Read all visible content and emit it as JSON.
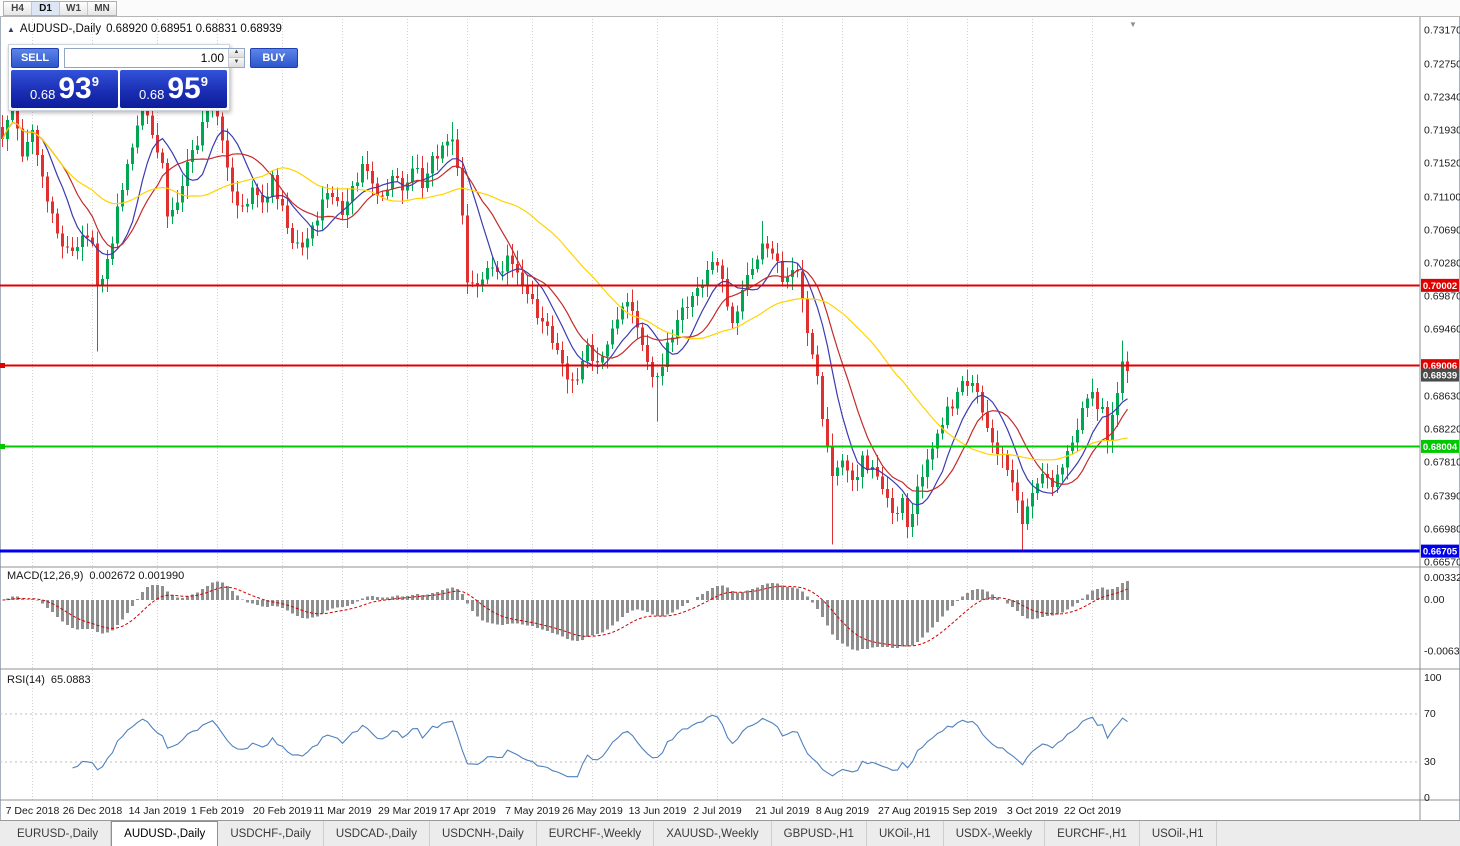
{
  "toolbar": {
    "timeframes": [
      {
        "label": "H4",
        "active": false
      },
      {
        "label": "D1",
        "active": true
      },
      {
        "label": "W1",
        "active": false
      },
      {
        "label": "MN",
        "active": false
      }
    ]
  },
  "icons": {
    "symbol_marker": "▲",
    "spinner_up": "▲",
    "spinner_down": "▼",
    "shift_marker": "▼"
  },
  "chart_header": {
    "title": "AUDUSD-,Daily",
    "ohlc": "0.68920 0.68951 0.68831 0.68939"
  },
  "trade_panel": {
    "sell_label": "SELL",
    "buy_label": "BUY",
    "volume": "1.00",
    "sell_price": {
      "prefix": "0.68",
      "big": "93",
      "sup": "9"
    },
    "buy_price": {
      "prefix": "0.68",
      "big": "95",
      "sup": "9"
    }
  },
  "macd_panel": {
    "label": "MACD(12,26,9)",
    "values": "0.002672 0.001990",
    "ticks": [
      "0.00332",
      "0.00",
      "-0.00636"
    ]
  },
  "rsi_panel": {
    "label": "RSI(14)",
    "value": "65.0883",
    "ticks": [
      "100",
      "70",
      "30",
      "0"
    ],
    "levels": [
      70,
      30
    ],
    "line_color": "#4f81bd"
  },
  "chart_data": {
    "type": "candlestick",
    "symbol": "AUDUSD",
    "timeframe": "Daily",
    "ohlc_current": {
      "open": 0.6892,
      "high": 0.68951,
      "low": 0.68831,
      "close": 0.68939
    },
    "last_close": 0.68939,
    "num_candles": 226,
    "y_axis": {
      "min": 0.6657,
      "max": 0.7317,
      "tick_step": 0.0041
    },
    "y_axis_labels": [
      "0.73170",
      "0.72750",
      "0.72340",
      "0.71930",
      "0.71520",
      "0.71100",
      "0.70690",
      "0.70280",
      "0.69870",
      "0.69460",
      "0.68630",
      "0.68220",
      "0.67810",
      "0.67390",
      "0.66980",
      "0.66570"
    ],
    "x_labels": [
      "7 Dec 2018",
      "26 Dec 2018",
      "14 Jan 2019",
      "1 Feb 2019",
      "20 Feb 2019",
      "11 Mar 2019",
      "29 Mar 2019",
      "17 Apr 2019",
      "7 May 2019",
      "26 May 2019",
      "13 Jun 2019",
      "2 Jul 2019",
      "21 Jul 2019",
      "8 Aug 2019",
      "27 Aug 2019",
      "15 Sep 2019",
      "3 Oct 2019",
      "22 Oct 2019"
    ],
    "x_label_indices": [
      6,
      18,
      31,
      43,
      56,
      68,
      81,
      93,
      106,
      118,
      131,
      143,
      156,
      168,
      181,
      193,
      206,
      218
    ],
    "close_anchors": [
      [
        0,
        0.7185
      ],
      [
        2,
        0.7215
      ],
      [
        4,
        0.716
      ],
      [
        6,
        0.7195
      ],
      [
        8,
        0.714
      ],
      [
        10,
        0.7085
      ],
      [
        12,
        0.705
      ],
      [
        14,
        0.7035
      ],
      [
        16,
        0.7062
      ],
      [
        18,
        0.7048
      ],
      [
        19,
        0.6995
      ],
      [
        20,
        0.7012
      ],
      [
        22,
        0.706
      ],
      [
        24,
        0.712
      ],
      [
        26,
        0.7178
      ],
      [
        28,
        0.7222
      ],
      [
        30,
        0.719
      ],
      [
        32,
        0.7148
      ],
      [
        33,
        0.7088
      ],
      [
        35,
        0.7112
      ],
      [
        37,
        0.715
      ],
      [
        39,
        0.7182
      ],
      [
        41,
        0.7212
      ],
      [
        42,
        0.7232
      ],
      [
        44,
        0.718
      ],
      [
        46,
        0.7112
      ],
      [
        48,
        0.7092
      ],
      [
        50,
        0.7122
      ],
      [
        52,
        0.7106
      ],
      [
        54,
        0.713
      ],
      [
        56,
        0.7092
      ],
      [
        58,
        0.7052
      ],
      [
        60,
        0.7042
      ],
      [
        62,
        0.7072
      ],
      [
        64,
        0.71
      ],
      [
        66,
        0.7112
      ],
      [
        68,
        0.7096
      ],
      [
        70,
        0.712
      ],
      [
        72,
        0.715
      ],
      [
        74,
        0.7122
      ],
      [
        76,
        0.7106
      ],
      [
        78,
        0.713
      ],
      [
        80,
        0.712
      ],
      [
        82,
        0.7146
      ],
      [
        84,
        0.713
      ],
      [
        86,
        0.7152
      ],
      [
        88,
        0.7172
      ],
      [
        90,
        0.7186
      ],
      [
        91,
        0.715
      ],
      [
        92,
        0.708
      ],
      [
        93,
        0.7012
      ],
      [
        95,
        0.7002
      ],
      [
        97,
        0.7026
      ],
      [
        99,
        0.7012
      ],
      [
        101,
        0.7036
      ],
      [
        103,
        0.7012
      ],
      [
        105,
        0.6992
      ],
      [
        107,
        0.6962
      ],
      [
        109,
        0.6946
      ],
      [
        111,
        0.6922
      ],
      [
        113,
        0.6882
      ],
      [
        115,
        0.6886
      ],
      [
        117,
        0.6922
      ],
      [
        119,
        0.6906
      ],
      [
        121,
        0.6932
      ],
      [
        123,
        0.6962
      ],
      [
        125,
        0.6986
      ],
      [
        127,
        0.6952
      ],
      [
        129,
        0.6902
      ],
      [
        131,
        0.6882
      ],
      [
        133,
        0.6922
      ],
      [
        135,
        0.6952
      ],
      [
        137,
        0.6982
      ],
      [
        139,
        0.6996
      ],
      [
        141,
        0.7022
      ],
      [
        142,
        0.7036
      ],
      [
        144,
        0.7002
      ],
      [
        146,
        0.6952
      ],
      [
        148,
        0.6986
      ],
      [
        150,
        0.7022
      ],
      [
        152,
        0.7058
      ],
      [
        154,
        0.7042
      ],
      [
        156,
        0.7012
      ],
      [
        158,
        0.7026
      ],
      [
        160,
        0.6992
      ],
      [
        161,
        0.6942
      ],
      [
        163,
        0.6882
      ],
      [
        165,
        0.6802
      ],
      [
        166,
        0.6762
      ],
      [
        168,
        0.6776
      ],
      [
        170,
        0.6752
      ],
      [
        172,
        0.6786
      ],
      [
        174,
        0.6772
      ],
      [
        176,
        0.6746
      ],
      [
        178,
        0.6716
      ],
      [
        180,
        0.6732
      ],
      [
        181,
        0.6702
      ],
      [
        183,
        0.6742
      ],
      [
        185,
        0.6782
      ],
      [
        187,
        0.6812
      ],
      [
        189,
        0.6842
      ],
      [
        191,
        0.6866
      ],
      [
        193,
        0.6882
      ],
      [
        195,
        0.6862
      ],
      [
        197,
        0.6832
      ],
      [
        199,
        0.6792
      ],
      [
        201,
        0.6772
      ],
      [
        203,
        0.6732
      ],
      [
        204,
        0.6712
      ],
      [
        206,
        0.6742
      ],
      [
        208,
        0.6762
      ],
      [
        210,
        0.6752
      ],
      [
        212,
        0.6776
      ],
      [
        214,
        0.6802
      ],
      [
        216,
        0.6842
      ],
      [
        218,
        0.6866
      ],
      [
        220,
        0.6842
      ],
      [
        221,
        0.6816
      ],
      [
        223,
        0.6862
      ],
      [
        224,
        0.6906
      ],
      [
        225,
        0.68939
      ]
    ],
    "wick_lows": {
      "19": 0.6918,
      "113": 0.6866,
      "131": 0.6831,
      "166": 0.6679,
      "181": 0.6687,
      "204": 0.6672
    },
    "wick_highs": {
      "28": 0.7248,
      "42": 0.7252,
      "90": 0.7203,
      "152": 0.708,
      "224": 0.6932
    },
    "hlines": [
      {
        "price": 0.70002,
        "label": "0.70002",
        "color": "#e00000",
        "width": 2,
        "marker": false
      },
      {
        "price": 0.69006,
        "label": "0.69006",
        "color": "#e00000",
        "width": 2,
        "marker": true
      },
      {
        "price": 0.68004,
        "label": "0.68004",
        "color": "#00c800",
        "width": 2,
        "marker": true
      },
      {
        "price": 0.66705,
        "label": "0.66705",
        "color": "#0000ee",
        "width": 3,
        "marker": false
      }
    ],
    "current_price_tag": {
      "price": 0.68939,
      "label": "0.68939",
      "color": "#4a4a4a"
    },
    "moving_averages": [
      {
        "period": 8,
        "color": "#3b3bb0"
      },
      {
        "period": 13,
        "color": "#c42b2b"
      },
      {
        "period": 34,
        "color": "#ffd400"
      }
    ],
    "colors": {
      "up": "#00a651",
      "down": "#e03030",
      "grid": "#d2d2d2",
      "macd_hist": "#8f8f8f",
      "macd_signal": "#d00000"
    }
  },
  "tabs": [
    {
      "label": "EURUSD-,Daily",
      "active": false
    },
    {
      "label": "AUDUSD-,Daily",
      "active": true
    },
    {
      "label": "USDCHF-,Daily",
      "active": false
    },
    {
      "label": "USDCAD-,Daily",
      "active": false
    },
    {
      "label": "USDCNH-,Daily",
      "active": false
    },
    {
      "label": "EURCHF-,Weekly",
      "active": false
    },
    {
      "label": "XAUUSD-,Weekly",
      "active": false
    },
    {
      "label": "GBPUSD-,H1",
      "active": false
    },
    {
      "label": "UKOil-,H1",
      "active": false
    },
    {
      "label": "USDX-,Weekly",
      "active": false
    },
    {
      "label": "EURCHF-,H1",
      "active": false
    },
    {
      "label": "USOil-,H1",
      "active": false
    }
  ]
}
